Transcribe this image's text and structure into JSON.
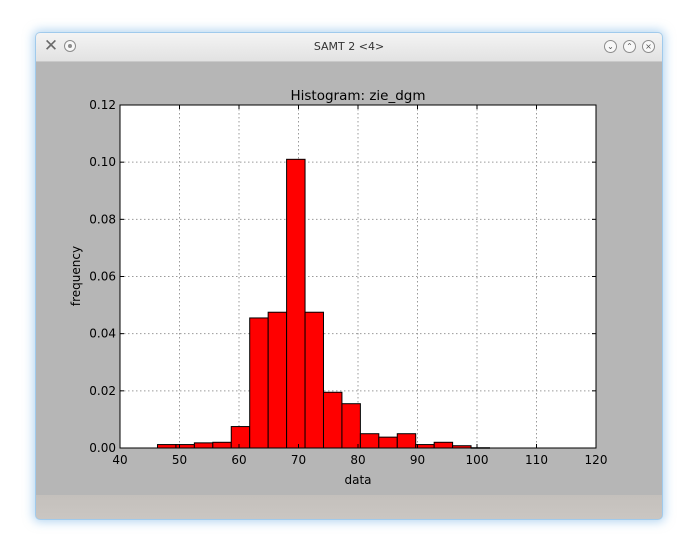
{
  "window": {
    "title": "SAMT 2 <4>",
    "app_icon": "tools-icon",
    "buttons": [
      "minimize-icon",
      "maximize-icon",
      "close-icon"
    ]
  },
  "chart_data": {
    "type": "bar",
    "title": "Histogram: zie_dgm",
    "xlabel": "data",
    "ylabel": "frequency",
    "xlim": [
      40,
      120
    ],
    "ylim": [
      0,
      0.12
    ],
    "xticks": [
      "40",
      "50",
      "60",
      "70",
      "80",
      "90",
      "100",
      "110",
      "120"
    ],
    "yticks": [
      "0.00",
      "0.02",
      "0.04",
      "0.06",
      "0.08",
      "0.10",
      "0.12"
    ],
    "grid": true,
    "bar_color": "#ff0000",
    "bin_width": 3.1,
    "bins": [
      {
        "x0": 46.3,
        "value": 0.0012
      },
      {
        "x0": 49.4,
        "value": 0.0012
      },
      {
        "x0": 52.5,
        "value": 0.0018
      },
      {
        "x0": 55.6,
        "value": 0.002
      },
      {
        "x0": 58.7,
        "value": 0.0075
      },
      {
        "x0": 61.8,
        "value": 0.0455
      },
      {
        "x0": 64.9,
        "value": 0.0475
      },
      {
        "x0": 68.0,
        "value": 0.101
      },
      {
        "x0": 71.1,
        "value": 0.0475
      },
      {
        "x0": 74.2,
        "value": 0.0195
      },
      {
        "x0": 77.3,
        "value": 0.0155
      },
      {
        "x0": 80.4,
        "value": 0.005
      },
      {
        "x0": 83.5,
        "value": 0.0038
      },
      {
        "x0": 86.6,
        "value": 0.005
      },
      {
        "x0": 89.7,
        "value": 0.0012
      },
      {
        "x0": 92.8,
        "value": 0.002
      },
      {
        "x0": 95.9,
        "value": 0.0008
      },
      {
        "x0": 99.0,
        "value": 0.0001
      }
    ]
  }
}
